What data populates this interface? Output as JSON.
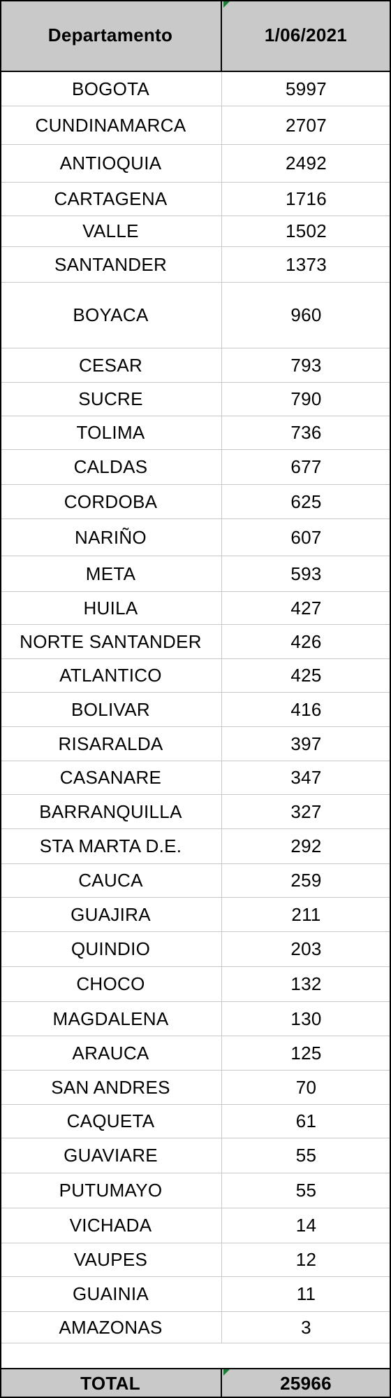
{
  "table": {
    "headers": [
      "Departamento",
      "1/06/2021"
    ],
    "rows": [
      [
        "BOGOTA",
        "5997"
      ],
      [
        "CUNDINAMARCA",
        "2707"
      ],
      [
        "ANTIOQUIA",
        "2492"
      ],
      [
        "CARTAGENA",
        "1716"
      ],
      [
        "VALLE",
        "1502"
      ],
      [
        "SANTANDER",
        "1373"
      ],
      [
        "BOYACA",
        "960"
      ],
      [
        "CESAR",
        "793"
      ],
      [
        "SUCRE",
        "790"
      ],
      [
        "TOLIMA",
        "736"
      ],
      [
        "CALDAS",
        "677"
      ],
      [
        "CORDOBA",
        "625"
      ],
      [
        "NARIÑO",
        "607"
      ],
      [
        "META",
        "593"
      ],
      [
        "HUILA",
        "427"
      ],
      [
        "NORTE SANTANDER",
        "426"
      ],
      [
        "ATLANTICO",
        "425"
      ],
      [
        "BOLIVAR",
        "416"
      ],
      [
        "RISARALDA",
        "397"
      ],
      [
        "CASANARE",
        "347"
      ],
      [
        "BARRANQUILLA",
        "327"
      ],
      [
        "STA MARTA D.E.",
        "292"
      ],
      [
        "CAUCA",
        "259"
      ],
      [
        "GUAJIRA",
        "211"
      ],
      [
        "QUINDIO",
        "203"
      ],
      [
        "CHOCO",
        "132"
      ],
      [
        "MAGDALENA",
        "130"
      ],
      [
        "ARAUCA",
        "125"
      ],
      [
        "SAN ANDRES",
        "70"
      ],
      [
        "CAQUETA",
        "61"
      ],
      [
        "GUAVIARE",
        "55"
      ],
      [
        "PUTUMAYO",
        "55"
      ],
      [
        "VICHADA",
        "14"
      ],
      [
        "VAUPES",
        "12"
      ],
      [
        "GUAINIA",
        "11"
      ],
      [
        "AMAZONAS",
        "3"
      ]
    ],
    "total_label": "TOTAL",
    "total_value": "25966"
  },
  "colors": {
    "header_fill": "#c9c9c9",
    "total_fill": "#c9c9c9",
    "corner_marker": "#1e7b3a"
  }
}
